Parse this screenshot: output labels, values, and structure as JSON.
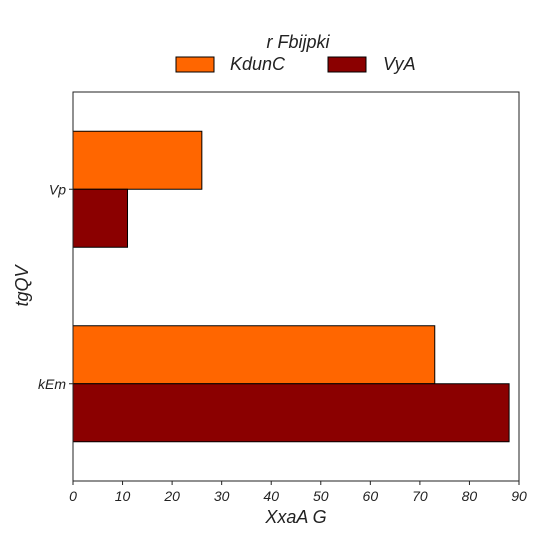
{
  "chart_data": {
    "type": "bar",
    "orientation": "horizontal",
    "legend_title": "r Fbijpki",
    "legend_position": "top-center",
    "xlabel": "XxaA  G",
    "ylabel": "tgQV",
    "xlim": [
      0,
      90
    ],
    "xticks": [
      "0",
      "10",
      "20",
      "30",
      "40",
      "50",
      "60",
      "70",
      "80",
      "90"
    ],
    "categories": [
      "Vp",
      "kEm"
    ],
    "grid": false,
    "series": [
      {
        "name": "KdunC",
        "color": "#ff6600",
        "values": [
          26,
          73
        ]
      },
      {
        "name": "VyA",
        "color": "#8b0000",
        "values": [
          11,
          88
        ]
      }
    ]
  }
}
